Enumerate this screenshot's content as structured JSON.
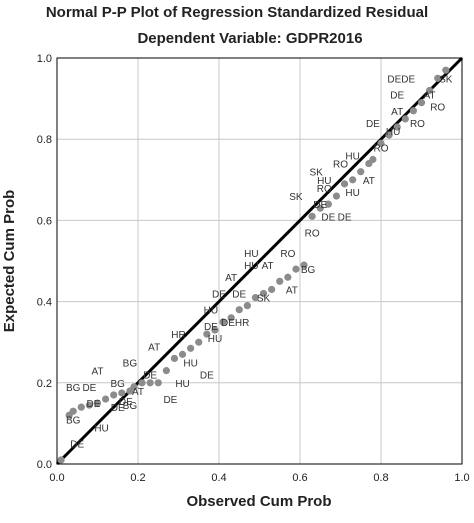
{
  "chart_data": {
    "type": "scatter",
    "title": "Normal P-P Plot of Regression Standardized Residual",
    "subtitle": "Dependent Variable: GDPR2016",
    "xlabel": "Observed Cum Prob",
    "ylabel": "Expected Cum Prob",
    "xlim": [
      0,
      1
    ],
    "ylim": [
      0,
      1
    ],
    "xticks": [
      "0.0",
      "0.2",
      "0.4",
      "0.6",
      "0.8",
      "1.0"
    ],
    "yticks": [
      "0.0",
      "0.2",
      "0.4",
      "0.6",
      "0.8",
      "1.0"
    ],
    "grid": true,
    "reference_line": {
      "from": [
        0,
        0
      ],
      "to": [
        1,
        1
      ]
    },
    "colors": {
      "points": "#8c8c8c",
      "line": "#000000",
      "grid": "#c8c8c8",
      "text": "#333333"
    },
    "points": [
      {
        "x": 0.01,
        "y": 0.01
      },
      {
        "x": 0.03,
        "y": 0.12
      },
      {
        "x": 0.04,
        "y": 0.13
      },
      {
        "x": 0.06,
        "y": 0.14
      },
      {
        "x": 0.08,
        "y": 0.145
      },
      {
        "x": 0.1,
        "y": 0.15
      },
      {
        "x": 0.12,
        "y": 0.16
      },
      {
        "x": 0.14,
        "y": 0.17
      },
      {
        "x": 0.16,
        "y": 0.175
      },
      {
        "x": 0.18,
        "y": 0.18
      },
      {
        "x": 0.19,
        "y": 0.19
      },
      {
        "x": 0.21,
        "y": 0.2
      },
      {
        "x": 0.23,
        "y": 0.2
      },
      {
        "x": 0.25,
        "y": 0.2
      },
      {
        "x": 0.27,
        "y": 0.23
      },
      {
        "x": 0.29,
        "y": 0.26
      },
      {
        "x": 0.31,
        "y": 0.27
      },
      {
        "x": 0.33,
        "y": 0.285
      },
      {
        "x": 0.35,
        "y": 0.3
      },
      {
        "x": 0.37,
        "y": 0.32
      },
      {
        "x": 0.39,
        "y": 0.33
      },
      {
        "x": 0.41,
        "y": 0.35
      },
      {
        "x": 0.43,
        "y": 0.36
      },
      {
        "x": 0.45,
        "y": 0.38
      },
      {
        "x": 0.47,
        "y": 0.39
      },
      {
        "x": 0.49,
        "y": 0.41
      },
      {
        "x": 0.51,
        "y": 0.42
      },
      {
        "x": 0.53,
        "y": 0.43
      },
      {
        "x": 0.55,
        "y": 0.45
      },
      {
        "x": 0.57,
        "y": 0.46
      },
      {
        "x": 0.59,
        "y": 0.48
      },
      {
        "x": 0.61,
        "y": 0.49
      },
      {
        "x": 0.63,
        "y": 0.61
      },
      {
        "x": 0.65,
        "y": 0.63
      },
      {
        "x": 0.67,
        "y": 0.64
      },
      {
        "x": 0.69,
        "y": 0.66
      },
      {
        "x": 0.71,
        "y": 0.69
      },
      {
        "x": 0.73,
        "y": 0.7
      },
      {
        "x": 0.75,
        "y": 0.72
      },
      {
        "x": 0.77,
        "y": 0.74
      },
      {
        "x": 0.78,
        "y": 0.75
      },
      {
        "x": 0.8,
        "y": 0.79
      },
      {
        "x": 0.82,
        "y": 0.81
      },
      {
        "x": 0.84,
        "y": 0.83
      },
      {
        "x": 0.86,
        "y": 0.85
      },
      {
        "x": 0.88,
        "y": 0.87
      },
      {
        "x": 0.9,
        "y": 0.89
      },
      {
        "x": 0.92,
        "y": 0.92
      },
      {
        "x": 0.94,
        "y": 0.95
      },
      {
        "x": 0.96,
        "y": 0.97
      }
    ],
    "point_labels": [
      {
        "text": "DEDE",
        "x": 0.85,
        "y": 0.95
      },
      {
        "text": "SK",
        "x": 0.96,
        "y": 0.95
      },
      {
        "text": "DE",
        "x": 0.84,
        "y": 0.91
      },
      {
        "text": "AT",
        "x": 0.92,
        "y": 0.91
      },
      {
        "text": "AT",
        "x": 0.84,
        "y": 0.87
      },
      {
        "text": "RO",
        "x": 0.94,
        "y": 0.88
      },
      {
        "text": "DE",
        "x": 0.78,
        "y": 0.84
      },
      {
        "text": "HU",
        "x": 0.83,
        "y": 0.82
      },
      {
        "text": "RO",
        "x": 0.89,
        "y": 0.84
      },
      {
        "text": "RO",
        "x": 0.8,
        "y": 0.78
      },
      {
        "text": "HU",
        "x": 0.73,
        "y": 0.76
      },
      {
        "text": "RO",
        "x": 0.7,
        "y": 0.74
      },
      {
        "text": "SK",
        "x": 0.64,
        "y": 0.72
      },
      {
        "text": "HU",
        "x": 0.66,
        "y": 0.7
      },
      {
        "text": "AT",
        "x": 0.77,
        "y": 0.7
      },
      {
        "text": "RO",
        "x": 0.66,
        "y": 0.68
      },
      {
        "text": "HU",
        "x": 0.73,
        "y": 0.67
      },
      {
        "text": "SK",
        "x": 0.59,
        "y": 0.66
      },
      {
        "text": "DE",
        "x": 0.65,
        "y": 0.64
      },
      {
        "text": "DE",
        "x": 0.67,
        "y": 0.61
      },
      {
        "text": "DE",
        "x": 0.71,
        "y": 0.61
      },
      {
        "text": "RO",
        "x": 0.63,
        "y": 0.57
      },
      {
        "text": "HU",
        "x": 0.48,
        "y": 0.52
      },
      {
        "text": "RO",
        "x": 0.57,
        "y": 0.52
      },
      {
        "text": "HU",
        "x": 0.48,
        "y": 0.49
      },
      {
        "text": "AT",
        "x": 0.52,
        "y": 0.49
      },
      {
        "text": "BG",
        "x": 0.62,
        "y": 0.48
      },
      {
        "text": "AT",
        "x": 0.43,
        "y": 0.46
      },
      {
        "text": "DE",
        "x": 0.4,
        "y": 0.42
      },
      {
        "text": "DE",
        "x": 0.45,
        "y": 0.42
      },
      {
        "text": "AT",
        "x": 0.58,
        "y": 0.43
      },
      {
        "text": "SK",
        "x": 0.51,
        "y": 0.41
      },
      {
        "text": "HU",
        "x": 0.38,
        "y": 0.38
      },
      {
        "text": "DEHR",
        "x": 0.44,
        "y": 0.35
      },
      {
        "text": "HR",
        "x": 0.3,
        "y": 0.32
      },
      {
        "text": "DE",
        "x": 0.38,
        "y": 0.34
      },
      {
        "text": "HU",
        "x": 0.39,
        "y": 0.31
      },
      {
        "text": "AT",
        "x": 0.24,
        "y": 0.29
      },
      {
        "text": "HU",
        "x": 0.33,
        "y": 0.25
      },
      {
        "text": "AT",
        "x": 0.1,
        "y": 0.23
      },
      {
        "text": "BG",
        "x": 0.18,
        "y": 0.25
      },
      {
        "text": "DE",
        "x": 0.37,
        "y": 0.22
      },
      {
        "text": "DE",
        "x": 0.23,
        "y": 0.22
      },
      {
        "text": "BG",
        "x": 0.04,
        "y": 0.19
      },
      {
        "text": "DE",
        "x": 0.08,
        "y": 0.19
      },
      {
        "text": "BG",
        "x": 0.15,
        "y": 0.2
      },
      {
        "text": "HU",
        "x": 0.31,
        "y": 0.2
      },
      {
        "text": "AT",
        "x": 0.2,
        "y": 0.18
      },
      {
        "text": "DE",
        "x": 0.09,
        "y": 0.15
      },
      {
        "text": "DE",
        "x": 0.17,
        "y": 0.155
      },
      {
        "text": "BG",
        "x": 0.04,
        "y": 0.11
      },
      {
        "text": "DE",
        "x": 0.15,
        "y": 0.14
      },
      {
        "text": "BG",
        "x": 0.18,
        "y": 0.145
      },
      {
        "text": "DE",
        "x": 0.28,
        "y": 0.16
      },
      {
        "text": "HU",
        "x": 0.11,
        "y": 0.09
      },
      {
        "text": "DE",
        "x": 0.05,
        "y": 0.05
      }
    ]
  }
}
